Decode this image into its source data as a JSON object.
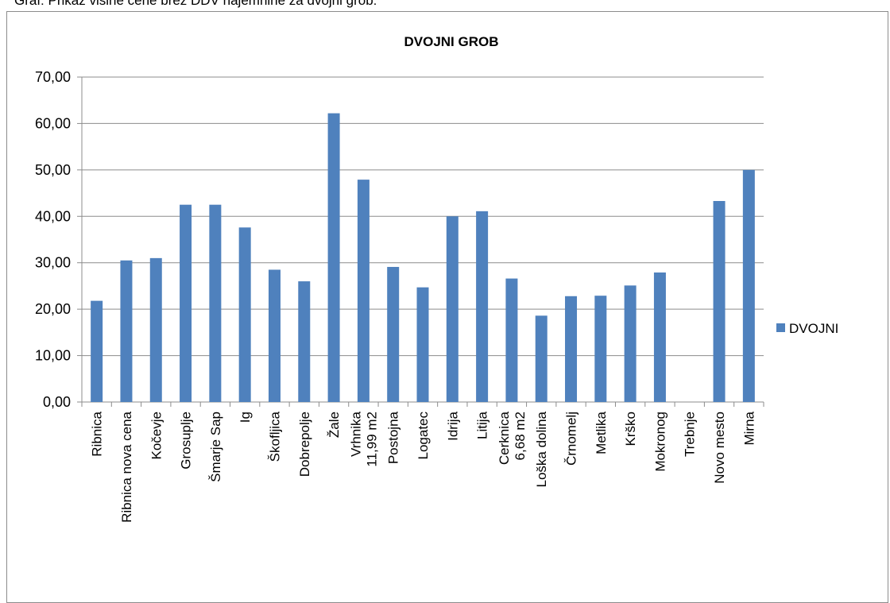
{
  "caption": "Graf: Prikaz višine cene brez DDV najemnine za dvojni grob:",
  "chart_data": {
    "type": "bar",
    "title": "DVOJNI GROB",
    "xlabel": "",
    "ylabel": "",
    "ylim": [
      0,
      70
    ],
    "yticks": [
      "0,00",
      "10,00",
      "20,00",
      "30,00",
      "40,00",
      "50,00",
      "60,00",
      "70,00"
    ],
    "grid": true,
    "legend_position": "right",
    "bar_color": "#4f81bd",
    "categories": [
      [
        "Ribnica"
      ],
      [
        "Ribnica nova cena"
      ],
      [
        "Kočevje"
      ],
      [
        "Grosuplje"
      ],
      [
        "Šmarje Sap"
      ],
      [
        "Ig"
      ],
      [
        "Škofljica"
      ],
      [
        "Dobrepolje"
      ],
      [
        "Žale"
      ],
      [
        "Vrhnika",
        "11,99 m2"
      ],
      [
        "Postojna"
      ],
      [
        "Logatec"
      ],
      [
        "Idrija"
      ],
      [
        "Litija"
      ],
      [
        "Cerknica",
        "6,68 m2"
      ],
      [
        "Loška dolina"
      ],
      [
        "Črnomelj"
      ],
      [
        "Metlika"
      ],
      [
        "Krško"
      ],
      [
        "Mokronog"
      ],
      [
        "Trebnje"
      ],
      [
        "Novo mesto"
      ],
      [
        "Mirna"
      ]
    ],
    "series": [
      {
        "name": "DVOJNI",
        "values": [
          21.8,
          30.5,
          31.0,
          42.5,
          42.5,
          37.6,
          28.5,
          26.0,
          62.2,
          47.9,
          29.1,
          24.7,
          40.0,
          41.1,
          26.6,
          18.6,
          22.8,
          22.9,
          25.1,
          27.9,
          0,
          43.3,
          50.0
        ]
      }
    ]
  }
}
